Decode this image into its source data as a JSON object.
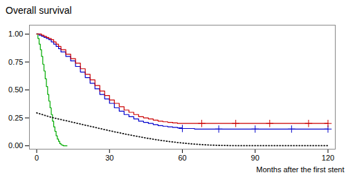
{
  "chart_data": {
    "type": "line",
    "title": "Overall survival",
    "xlabel": "Months after the first stent",
    "xlim": [
      -3,
      123
    ],
    "ylim": [
      -0.03,
      1.08
    ],
    "xticks": [
      0,
      30,
      60,
      90,
      120
    ],
    "yticks": [
      {
        "value": 0.0,
        "label": "0.00"
      },
      {
        "value": 0.25,
        "label": "0.25"
      },
      {
        "value": 0.5,
        "label": "0.50"
      },
      {
        "value": 0.75,
        "label": "0.75"
      },
      {
        "value": 1.0,
        "label": "1.00"
      }
    ],
    "series": [
      {
        "type": "step",
        "color": "#00aa00",
        "line_style": "solid",
        "x": [
          0,
          0.5,
          1,
          1.5,
          2,
          2.5,
          3,
          3.5,
          4,
          4.5,
          5,
          5.5,
          6,
          6.5,
          7,
          7.5,
          8,
          8.5,
          9,
          9.5,
          10,
          10.5,
          11,
          11.5,
          12,
          12.5
        ],
        "values": [
          1.0,
          0.96,
          0.91,
          0.86,
          0.8,
          0.73,
          0.67,
          0.6,
          0.53,
          0.46,
          0.4,
          0.34,
          0.28,
          0.22,
          0.17,
          0.13,
          0.09,
          0.06,
          0.04,
          0.02,
          0.01,
          0.005,
          0.0,
          0.0,
          0.0,
          0.0
        ]
      },
      {
        "type": "step",
        "color": "#0000cc",
        "line_style": "solid",
        "x": [
          0,
          1,
          2,
          3,
          4,
          5,
          6,
          7,
          8,
          9,
          10,
          12,
          14,
          16,
          18,
          20,
          22,
          24,
          26,
          28,
          30,
          32,
          34,
          36,
          38,
          40,
          42,
          44,
          46,
          48,
          50,
          52,
          54,
          56,
          58,
          60,
          65,
          70,
          75,
          80,
          85,
          90,
          95,
          100,
          105,
          110,
          115,
          120
        ],
        "values": [
          1.0,
          0.99,
          0.98,
          0.97,
          0.96,
          0.95,
          0.93,
          0.91,
          0.89,
          0.87,
          0.84,
          0.8,
          0.76,
          0.71,
          0.66,
          0.61,
          0.56,
          0.51,
          0.46,
          0.42,
          0.38,
          0.34,
          0.31,
          0.28,
          0.26,
          0.24,
          0.22,
          0.21,
          0.2,
          0.19,
          0.18,
          0.175,
          0.17,
          0.165,
          0.16,
          0.155,
          0.15,
          0.15,
          0.15,
          0.15,
          0.15,
          0.15,
          0.15,
          0.15,
          0.15,
          0.15,
          0.15,
          0.15
        ]
      },
      {
        "type": "step",
        "color": "#cc0000",
        "line_style": "solid",
        "x": [
          0,
          1,
          2,
          3,
          4,
          5,
          6,
          7,
          8,
          9,
          10,
          12,
          14,
          16,
          18,
          20,
          22,
          24,
          26,
          28,
          30,
          32,
          34,
          36,
          38,
          40,
          42,
          44,
          46,
          48,
          50,
          52,
          54,
          56,
          58,
          60,
          65,
          70,
          75,
          80,
          85,
          90,
          95,
          100,
          105,
          110,
          115,
          120
        ],
        "values": [
          1.0,
          1.0,
          0.99,
          0.98,
          0.97,
          0.96,
          0.95,
          0.93,
          0.91,
          0.89,
          0.86,
          0.82,
          0.78,
          0.74,
          0.69,
          0.64,
          0.59,
          0.54,
          0.49,
          0.45,
          0.41,
          0.38,
          0.35,
          0.32,
          0.3,
          0.28,
          0.26,
          0.25,
          0.24,
          0.23,
          0.22,
          0.215,
          0.21,
          0.205,
          0.2,
          0.2,
          0.2,
          0.2,
          0.2,
          0.2,
          0.2,
          0.2,
          0.2,
          0.2,
          0.2,
          0.2,
          0.2,
          0.2
        ]
      },
      {
        "type": "line",
        "color": "#111111",
        "line_style": "dotted",
        "x": [
          0,
          3,
          6,
          9,
          12,
          15,
          18,
          21,
          24,
          27,
          30,
          35,
          40,
          45,
          50,
          55,
          60,
          65,
          70,
          75,
          80,
          85,
          90,
          95,
          100,
          105,
          110,
          115,
          120
        ],
        "values": [
          0.295,
          0.275,
          0.255,
          0.24,
          0.225,
          0.21,
          0.195,
          0.18,
          0.165,
          0.15,
          0.135,
          0.112,
          0.09,
          0.07,
          0.052,
          0.037,
          0.025,
          0.015,
          0.008,
          0.004,
          0.002,
          0.001,
          0.001,
          0.001,
          0.001,
          0.001,
          0.001,
          0.001,
          0.001
        ]
      },
      {
        "type": "scatter",
        "color": "#0000cc",
        "marker": "+",
        "x": [
          60,
          75,
          90,
          105,
          120
        ],
        "values": [
          0.155,
          0.15,
          0.15,
          0.15,
          0.15
        ]
      },
      {
        "type": "scatter",
        "color": "#cc0000",
        "marker": "+",
        "x": [
          68,
          82,
          96,
          112,
          120
        ],
        "values": [
          0.2,
          0.2,
          0.2,
          0.2,
          0.2
        ]
      }
    ]
  }
}
